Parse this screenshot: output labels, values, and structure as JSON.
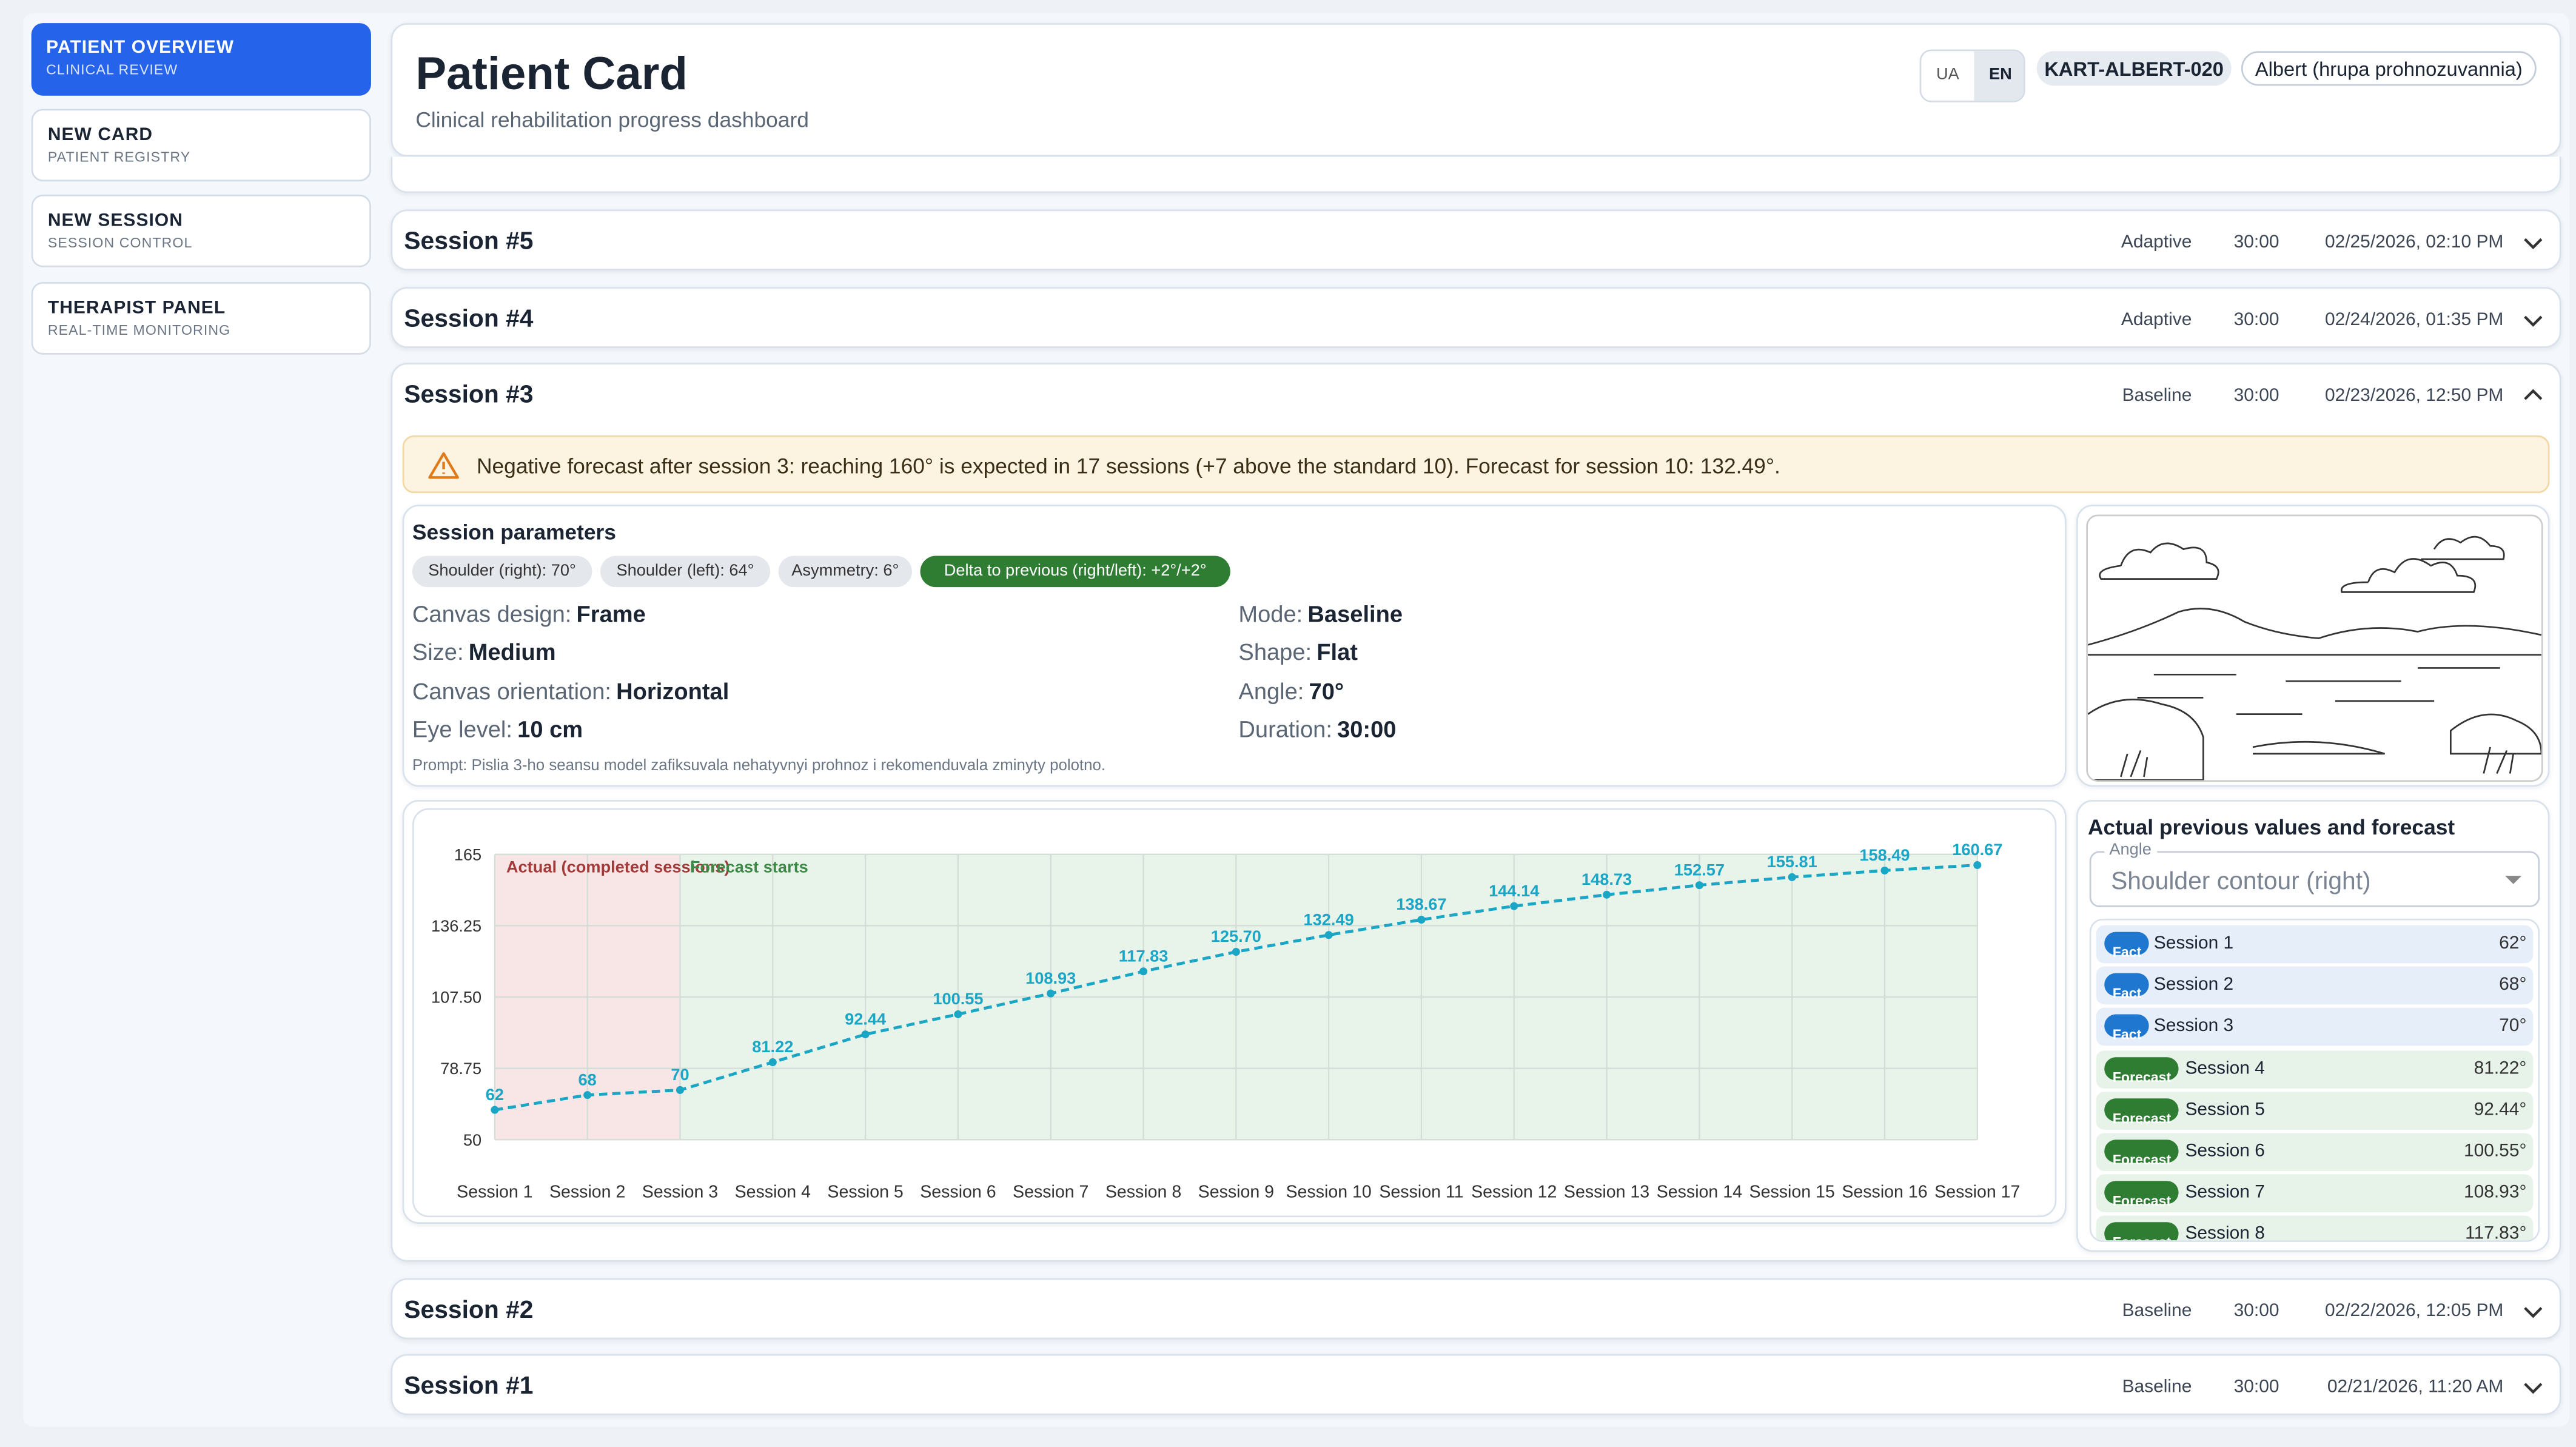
{
  "sidebar": [
    {
      "title": "PATIENT OVERVIEW",
      "subtitle": "CLINICAL REVIEW"
    },
    {
      "title": "NEW CARD",
      "subtitle": "PATIENT REGISTRY"
    },
    {
      "title": "NEW SESSION",
      "subtitle": "SESSION CONTROL"
    },
    {
      "title": "THERAPIST PANEL",
      "subtitle": "REAL-TIME MONITORING"
    }
  ],
  "header": {
    "title": "Patient Card",
    "subtitle": "Clinical rehabilitation progress dashboard",
    "languages": [
      "UA",
      "EN"
    ],
    "card_id": "KART-ALBERT-020",
    "patient": "Albert (hrupa prohnozuvannia)"
  },
  "sessions": [
    {
      "title": "Session #5",
      "mode": "Adaptive",
      "duration": "30:00",
      "date": "02/25/2026, 02:10 PM"
    },
    {
      "title": "Session #4",
      "mode": "Adaptive",
      "duration": "30:00",
      "date": "02/24/2026, 01:35 PM"
    },
    {
      "title": "Session #3",
      "mode": "Baseline",
      "duration": "30:00",
      "date": "02/23/2026, 12:50 PM"
    },
    {
      "title": "Session #2",
      "mode": "Baseline",
      "duration": "30:00",
      "date": "02/22/2026, 12:05 PM"
    },
    {
      "title": "Session #1",
      "mode": "Baseline",
      "duration": "30:00",
      "date": "02/21/2026, 11:20 AM"
    }
  ],
  "detail": {
    "alert": "Negative forecast after session 3: reaching 160° is expected in 17 sessions (+7 above the standard 10). Forecast for session 10: 132.49°.",
    "heading": "Session parameters",
    "chips": [
      "Shoulder (right): 70°",
      "Shoulder (left): 64°",
      "Asymmetry: 6°",
      "Delta to previous (right/left): +2°/+2°"
    ],
    "params": [
      [
        {
          "label": "Canvas design:",
          "value": "Frame"
        },
        {
          "label": "Size:",
          "value": "Medium"
        },
        {
          "label": "Canvas orientation:",
          "value": "Horizontal"
        },
        {
          "label": "Eye level:",
          "value": "10 cm"
        }
      ],
      [
        {
          "label": "Mode:",
          "value": "Baseline"
        },
        {
          "label": "Shape:",
          "value": "Flat"
        },
        {
          "label": "Angle:",
          "value": "70°"
        },
        {
          "label": "Duration:",
          "value": "30:00"
        }
      ]
    ],
    "prompt": "Prompt: Pislia 3-ho seansu model zafiksuvala nehatyvnyi prohnoz i rekomenduvala zminyty polotno."
  },
  "chart_data": {
    "type": "line",
    "annotations": [
      "Actual (completed sessions)",
      "Forecast starts"
    ],
    "categories": [
      "Session 1",
      "Session 2",
      "Session 3",
      "Session 4",
      "Session 5",
      "Session 6",
      "Session 7",
      "Session 8",
      "Session 9",
      "Session 10",
      "Session 11",
      "Session 12",
      "Session 13",
      "Session 14",
      "Session 15",
      "Session 16",
      "Session 17"
    ],
    "values": [
      62,
      68,
      70,
      81.22,
      92.44,
      100.55,
      108.93,
      117.83,
      125.7,
      132.49,
      138.67,
      144.14,
      148.73,
      152.57,
      155.81,
      158.49,
      160.67
    ],
    "value_labels": [
      "62",
      "68",
      "70",
      "81.22",
      "92.44",
      "100.55",
      "108.93",
      "117.83",
      "125.70",
      "132.49",
      "138.67",
      "144.14",
      "148.73",
      "152.57",
      "155.81",
      "158.49",
      "160.67"
    ],
    "color": "#1ba6c6",
    "ylim": [
      50,
      165
    ],
    "yticks": [
      50,
      78.75,
      {
        "value": 107.5,
        "label": "107.50"
      },
      136.25,
      165
    ],
    "grid": true
  },
  "forecast_panel": {
    "title": "Actual previous values and forecast",
    "select_label": "Angle",
    "select_value": "Shoulder contour (right)",
    "items": [
      {
        "badge": "Fact",
        "session": "Session 1",
        "value": "62°"
      },
      {
        "badge": "Fact",
        "session": "Session 2",
        "value": "68°"
      },
      {
        "badge": "Fact",
        "session": "Session 3",
        "value": "70°"
      },
      {
        "badge": "Forecast",
        "session": "Session 4",
        "value": "81.22°"
      },
      {
        "badge": "Forecast",
        "session": "Session 5",
        "value": "92.44°"
      },
      {
        "badge": "Forecast",
        "session": "Session 6",
        "value": "100.55°"
      },
      {
        "badge": "Forecast",
        "session": "Session 7",
        "value": "108.93°"
      },
      {
        "badge": "Forecast",
        "session": "Session 8",
        "value": "117.83°"
      }
    ]
  }
}
